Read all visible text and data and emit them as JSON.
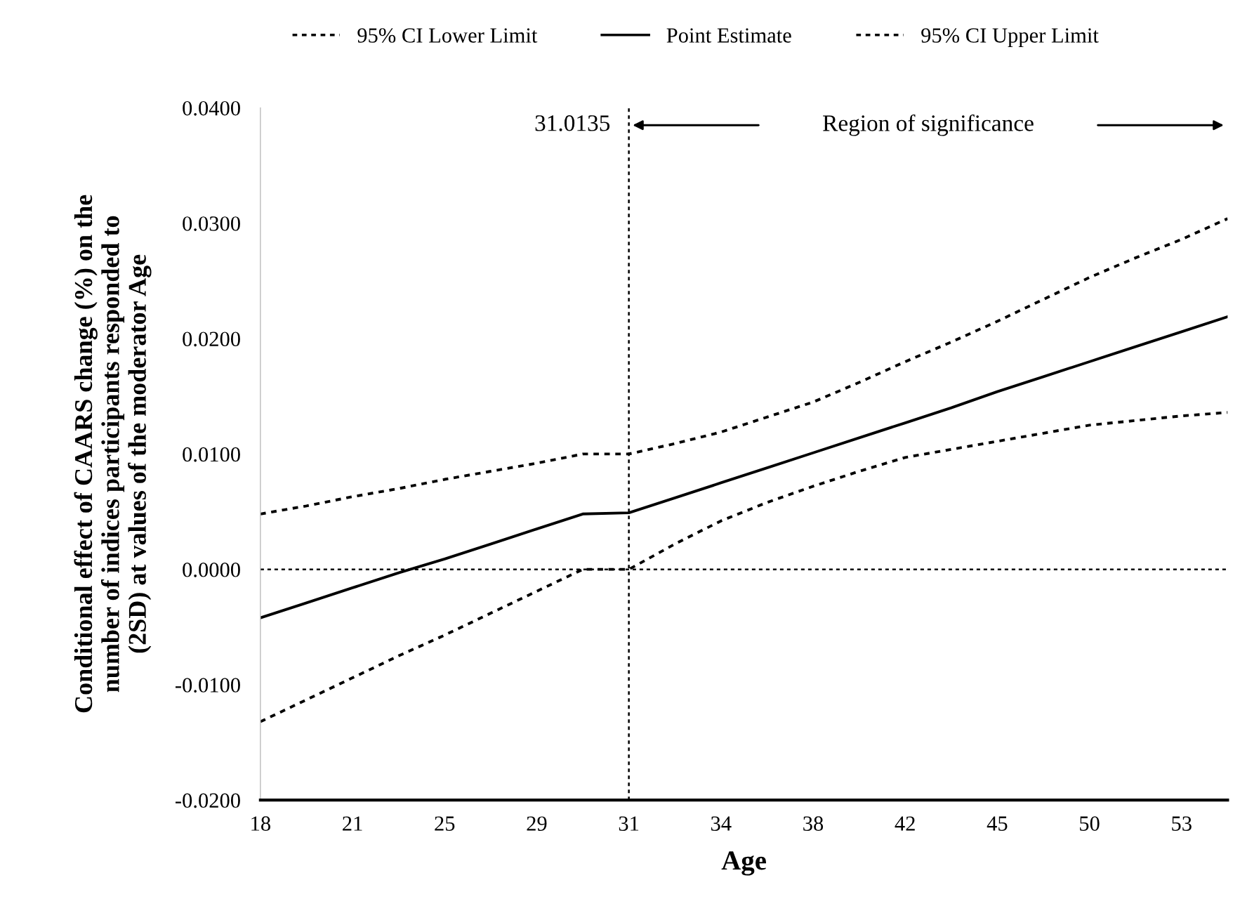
{
  "chart_data": {
    "type": "line",
    "xlabel": "Age",
    "ylabel": "Conditional effect of CAARS change (%) on the\nnumber of indices participants responded to\n(2SD) at values of the moderator Age",
    "categories": [
      "18",
      null,
      "21",
      null,
      "25",
      null,
      "29",
      null,
      "31",
      null,
      "34",
      null,
      "38",
      null,
      "42",
      null,
      "45",
      null,
      "50",
      null,
      "53",
      null
    ],
    "series": [
      {
        "name": "95% CI Lower Limit",
        "color": "#000000",
        "line_style": "dotted",
        "values": [
          -0.0132,
          -0.0113,
          -0.0094,
          -0.0075,
          -0.0057,
          -0.0038,
          -0.0019,
          0.0,
          0.0,
          0.0022,
          0.0042,
          0.0058,
          0.0072,
          0.0085,
          0.0097,
          0.0104,
          0.0111,
          0.0118,
          0.0125,
          0.0129,
          0.0133,
          0.0136
        ]
      },
      {
        "name": "Point Estimate",
        "color": "#000000",
        "line_style": "solid",
        "values": [
          -0.0042,
          -0.0029,
          -0.0016,
          -0.0003,
          0.0009,
          0.0022,
          0.0035,
          0.0048,
          0.0049,
          0.0062,
          0.0075,
          0.0088,
          0.0101,
          0.0114,
          0.0127,
          0.014,
          0.0154,
          0.0167,
          0.018,
          0.0193,
          0.0206,
          0.0219
        ]
      },
      {
        "name": "95% CI Upper Limit",
        "color": "#000000",
        "line_style": "dotted",
        "values": [
          0.0048,
          0.0055,
          0.0063,
          0.007,
          0.0078,
          0.0085,
          0.0092,
          0.01,
          0.01,
          0.0109,
          0.0119,
          0.0132,
          0.0145,
          0.0162,
          0.018,
          0.0197,
          0.0215,
          0.0234,
          0.0253,
          0.027,
          0.0286,
          0.0304
        ]
      }
    ],
    "ylim": [
      -0.02,
      0.04
    ],
    "yticks": [
      {
        "value": -0.02,
        "label": "-0.0200"
      },
      {
        "value": -0.01,
        "label": "-0.0100"
      },
      {
        "value": 0,
        "label": "0.0000"
      },
      {
        "value": 0.01,
        "label": "0.0100"
      },
      {
        "value": 0.02,
        "label": "0.0200"
      },
      {
        "value": 0.03,
        "label": "0.0300"
      },
      {
        "value": 0.04,
        "label": "0.0400"
      }
    ],
    "ref_lines": [
      {
        "axis": "x",
        "value": "31",
        "label": "31.0135",
        "line_style": "dotted"
      },
      {
        "axis": "y",
        "value": 0,
        "line_style": "dotted"
      }
    ],
    "annotations": [
      "Region of significance"
    ],
    "legend": "top",
    "grid": false,
    "marker": "none"
  }
}
